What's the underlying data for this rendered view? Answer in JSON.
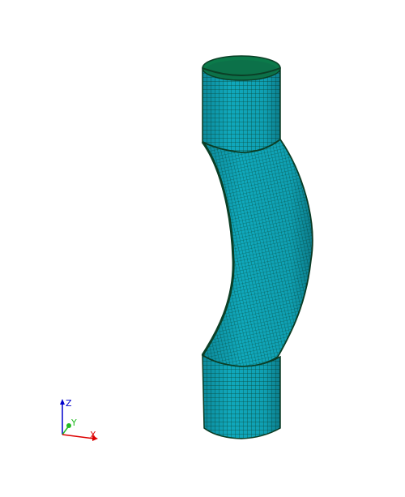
{
  "viewport": {
    "background": "#ffffff",
    "mesh": {
      "face_color": "#0fa9bd",
      "face_shadow": "#0b8a9a",
      "line_color": "#0a4a3a",
      "outline_color": "#0b3f26",
      "cap_color": "#0b7a4a"
    }
  },
  "triad": {
    "axes": [
      {
        "label": "Z",
        "color": "#0000cc",
        "icon": "z-axis-arrow-icon"
      },
      {
        "label": "Y",
        "color": "#22bb22",
        "icon": "y-axis-arrow-icon"
      },
      {
        "label": "X",
        "color": "#dd0000",
        "icon": "x-axis-arrow-icon"
      }
    ]
  }
}
